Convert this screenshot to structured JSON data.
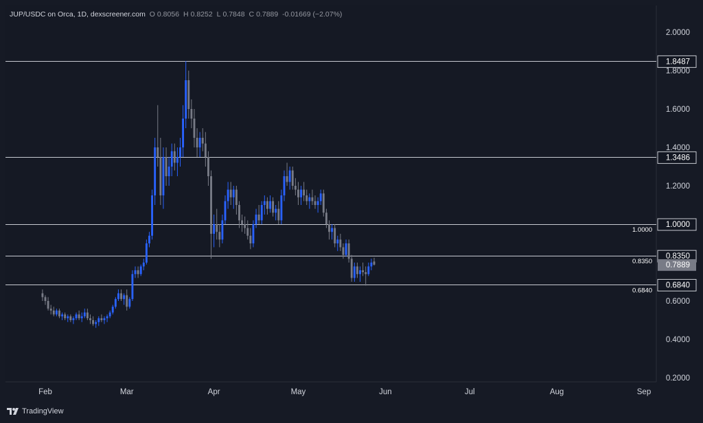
{
  "header": {
    "symbol": "JUP/USDC on Orca, 1D, dexscreener.com",
    "open_label": "O",
    "open": "0.8056",
    "high_label": "H",
    "high": "0.8252",
    "low_label": "L",
    "low": "0.7848",
    "close_label": "C",
    "close": "0.7889",
    "change": "-0.01669 (−2.07%)"
  },
  "footer": {
    "brand": "TradingView"
  },
  "colors": {
    "bg": "#151924",
    "up": "#2962ff",
    "down": "#787b86",
    "text": "#d1d4dc",
    "line": "#c8cbd2"
  },
  "chart_data": {
    "type": "candlestick",
    "title": "",
    "ylim": [
      0.15,
      2.1
    ],
    "y_ticks": [
      "2.0000",
      "1.8000",
      "1.6000",
      "1.4000",
      "1.2000",
      "1.0000",
      "0.6000",
      "0.4000",
      "0.2000"
    ],
    "x_ticks": [
      "Feb",
      "Mar",
      "Apr",
      "May",
      "Jun",
      "Jul",
      "Aug",
      "Sep"
    ],
    "x_tick_dates": [
      "2024-02-01",
      "2024-03-01",
      "2024-04-01",
      "2024-05-01",
      "2024-06-01",
      "2024-07-01",
      "2024-08-01",
      "2024-09-01"
    ],
    "first_date": "2024-01-31",
    "horizontal_lines": [
      {
        "value": 1.8487,
        "label": "1.8487"
      },
      {
        "value": 1.3486,
        "label": "1.3486"
      },
      {
        "value": 1.0,
        "label": "1.0000",
        "side_label": "1.0000"
      },
      {
        "value": 0.835,
        "label": "0.8350",
        "side_label": "0.8350"
      },
      {
        "value": 0.684,
        "label": "0.6840",
        "side_label": "0.6840"
      }
    ],
    "last_price": {
      "value": 0.7889,
      "label": "0.7889"
    },
    "candles": [
      [
        0.64,
        0.66,
        0.6,
        0.62
      ],
      [
        0.62,
        0.63,
        0.58,
        0.6
      ],
      [
        0.6,
        0.62,
        0.55,
        0.56
      ],
      [
        0.56,
        0.58,
        0.53,
        0.55
      ],
      [
        0.55,
        0.57,
        0.52,
        0.53
      ],
      [
        0.53,
        0.56,
        0.52,
        0.55
      ],
      [
        0.55,
        0.56,
        0.51,
        0.52
      ],
      [
        0.52,
        0.54,
        0.5,
        0.53
      ],
      [
        0.53,
        0.54,
        0.5,
        0.51
      ],
      [
        0.51,
        0.53,
        0.49,
        0.52
      ],
      [
        0.52,
        0.53,
        0.49,
        0.5
      ],
      [
        0.5,
        0.52,
        0.48,
        0.51
      ],
      [
        0.51,
        0.54,
        0.5,
        0.53
      ],
      [
        0.53,
        0.55,
        0.5,
        0.51
      ],
      [
        0.51,
        0.54,
        0.49,
        0.52
      ],
      [
        0.52,
        0.56,
        0.51,
        0.54
      ],
      [
        0.54,
        0.56,
        0.5,
        0.51
      ],
      [
        0.51,
        0.53,
        0.48,
        0.5
      ],
      [
        0.5,
        0.52,
        0.47,
        0.48
      ],
      [
        0.48,
        0.5,
        0.46,
        0.49
      ],
      [
        0.49,
        0.52,
        0.47,
        0.51
      ],
      [
        0.51,
        0.53,
        0.49,
        0.5
      ],
      [
        0.5,
        0.52,
        0.48,
        0.51
      ],
      [
        0.51,
        0.53,
        0.49,
        0.52
      ],
      [
        0.52,
        0.55,
        0.51,
        0.54
      ],
      [
        0.54,
        0.58,
        0.53,
        0.57
      ],
      [
        0.57,
        0.62,
        0.56,
        0.61
      ],
      [
        0.61,
        0.66,
        0.6,
        0.64
      ],
      [
        0.64,
        0.66,
        0.6,
        0.61
      ],
      [
        0.61,
        0.64,
        0.58,
        0.63
      ],
      [
        0.63,
        0.66,
        0.55,
        0.57
      ],
      [
        0.57,
        0.62,
        0.56,
        0.61
      ],
      [
        0.61,
        0.76,
        0.6,
        0.74
      ],
      [
        0.74,
        0.78,
        0.72,
        0.76
      ],
      [
        0.76,
        0.78,
        0.72,
        0.74
      ],
      [
        0.74,
        0.79,
        0.73,
        0.78
      ],
      [
        0.78,
        0.82,
        0.76,
        0.8
      ],
      [
        0.8,
        0.92,
        0.79,
        0.9
      ],
      [
        0.9,
        0.96,
        0.88,
        0.94
      ],
      [
        0.94,
        1.18,
        0.92,
        1.15
      ],
      [
        1.15,
        1.45,
        1.1,
        1.4
      ],
      [
        1.4,
        1.62,
        1.3,
        1.35
      ],
      [
        1.35,
        1.45,
        1.1,
        1.15
      ],
      [
        1.15,
        1.4,
        1.08,
        1.35
      ],
      [
        1.35,
        1.4,
        1.2,
        1.25
      ],
      [
        1.25,
        1.35,
        1.2,
        1.3
      ],
      [
        1.3,
        1.42,
        1.25,
        1.38
      ],
      [
        1.38,
        1.42,
        1.28,
        1.32
      ],
      [
        1.32,
        1.4,
        1.25,
        1.35
      ],
      [
        1.35,
        1.45,
        1.3,
        1.4
      ],
      [
        1.4,
        1.62,
        1.35,
        1.55
      ],
      [
        1.55,
        1.85,
        1.5,
        1.75
      ],
      [
        1.75,
        1.8,
        1.55,
        1.6
      ],
      [
        1.6,
        1.65,
        1.5,
        1.55
      ],
      [
        1.55,
        1.6,
        1.4,
        1.45
      ],
      [
        1.45,
        1.5,
        1.35,
        1.4
      ],
      [
        1.4,
        1.48,
        1.35,
        1.45
      ],
      [
        1.45,
        1.5,
        1.38,
        1.42
      ],
      [
        1.42,
        1.48,
        1.3,
        1.35
      ],
      [
        1.35,
        1.38,
        1.2,
        1.25
      ],
      [
        1.25,
        1.28,
        0.82,
        0.95
      ],
      [
        0.95,
        1.05,
        0.88,
        1.0
      ],
      [
        1.0,
        1.08,
        0.92,
        0.96
      ],
      [
        0.96,
        1.0,
        0.88,
        0.92
      ],
      [
        0.92,
        1.05,
        0.9,
        1.02
      ],
      [
        1.02,
        1.15,
        1.0,
        1.12
      ],
      [
        1.12,
        1.22,
        1.08,
        1.18
      ],
      [
        1.18,
        1.22,
        1.1,
        1.14
      ],
      [
        1.14,
        1.2,
        1.08,
        1.18
      ],
      [
        1.18,
        1.2,
        1.05,
        1.1
      ],
      [
        1.1,
        1.12,
        0.98,
        1.02
      ],
      [
        1.02,
        1.05,
        0.96,
        1.0
      ],
      [
        1.0,
        1.04,
        0.95,
        0.98
      ],
      [
        0.98,
        1.02,
        0.92,
        0.94
      ],
      [
        0.94,
        0.98,
        0.87,
        0.9
      ],
      [
        0.9,
        1.02,
        0.88,
        1.0
      ],
      [
        1.0,
        1.08,
        0.98,
        1.05
      ],
      [
        1.05,
        1.1,
        1.0,
        1.02
      ],
      [
        1.02,
        1.12,
        1.0,
        1.1
      ],
      [
        1.1,
        1.15,
        1.05,
        1.12
      ],
      [
        1.12,
        1.14,
        1.05,
        1.08
      ],
      [
        1.08,
        1.15,
        1.06,
        1.12
      ],
      [
        1.12,
        1.14,
        1.04,
        1.06
      ],
      [
        1.06,
        1.1,
        1.02,
        1.08
      ],
      [
        1.08,
        1.12,
        1.0,
        1.02
      ],
      [
        1.02,
        1.18,
        1.0,
        1.15
      ],
      [
        1.15,
        1.28,
        1.12,
        1.25
      ],
      [
        1.25,
        1.32,
        1.2,
        1.22
      ],
      [
        1.22,
        1.3,
        1.18,
        1.28
      ],
      [
        1.28,
        1.3,
        1.18,
        1.2
      ],
      [
        1.2,
        1.24,
        1.15,
        1.18
      ],
      [
        1.18,
        1.22,
        1.1,
        1.14
      ],
      [
        1.14,
        1.2,
        1.1,
        1.18
      ],
      [
        1.18,
        1.22,
        1.12,
        1.15
      ],
      [
        1.15,
        1.18,
        1.1,
        1.12
      ],
      [
        1.12,
        1.16,
        1.08,
        1.14
      ],
      [
        1.14,
        1.18,
        1.1,
        1.12
      ],
      [
        1.12,
        1.15,
        1.08,
        1.1
      ],
      [
        1.1,
        1.14,
        1.06,
        1.12
      ],
      [
        1.12,
        1.18,
        1.1,
        1.16
      ],
      [
        1.16,
        1.18,
        1.04,
        1.06
      ],
      [
        1.06,
        1.08,
        0.98,
        1.0
      ],
      [
        1.0,
        1.02,
        0.92,
        0.96
      ],
      [
        0.96,
        1.0,
        0.92,
        0.98
      ],
      [
        0.98,
        1.0,
        0.88,
        0.9
      ],
      [
        0.9,
        0.94,
        0.86,
        0.92
      ],
      [
        0.92,
        0.95,
        0.86,
        0.88
      ],
      [
        0.88,
        0.9,
        0.82,
        0.84
      ],
      [
        0.84,
        0.92,
        0.83,
        0.9
      ],
      [
        0.9,
        0.92,
        0.8,
        0.82
      ],
      [
        0.82,
        0.84,
        0.7,
        0.72
      ],
      [
        0.72,
        0.8,
        0.7,
        0.78
      ],
      [
        0.78,
        0.8,
        0.72,
        0.74
      ],
      [
        0.74,
        0.78,
        0.7,
        0.76
      ],
      [
        0.76,
        0.8,
        0.73,
        0.75
      ],
      [
        0.75,
        0.78,
        0.68,
        0.74
      ],
      [
        0.74,
        0.8,
        0.73,
        0.78
      ],
      [
        0.78,
        0.82,
        0.76,
        0.8
      ],
      [
        0.8056,
        0.8252,
        0.7848,
        0.7889
      ]
    ]
  }
}
